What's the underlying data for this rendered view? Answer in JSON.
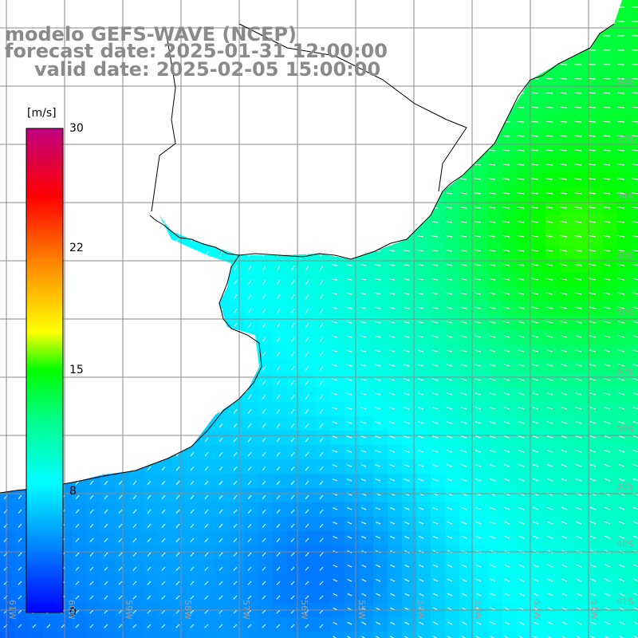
{
  "title": {
    "line1": "modelo GEFS-WAVE (NCEP)",
    "line2": "forecast date: 2025-01-31 12:00:00",
    "line3": "valid date: 2025-02-05 15:00:00"
  },
  "colorbar": {
    "unit": "[m/s]",
    "min": 0,
    "max": 30,
    "ticks": [
      "30",
      "22",
      "15",
      "8",
      "0"
    ],
    "tick_values": [
      30,
      22,
      15,
      8,
      0
    ],
    "colors": [
      "#0000ff",
      "#00aaff",
      "#00ffff",
      "#00ff00",
      "#ffff00",
      "#ff8800",
      "#ff0000",
      "#c00080"
    ]
  },
  "map": {
    "variable": "wind speed (m/s) with wind direction arrows",
    "lat_labels": [
      "32S",
      "33S",
      "34S",
      "35S",
      "36S",
      "37S",
      "38S",
      "39S",
      "40S",
      "41S"
    ],
    "lon_labels": [
      "61W",
      "60W",
      "59W",
      "58W",
      "57W",
      "56W",
      "55W",
      "54W",
      "53W",
      "52W",
      "51W"
    ],
    "land_color": "#ffffff",
    "coast_color": "#000000",
    "grid_color": "#888888"
  }
}
